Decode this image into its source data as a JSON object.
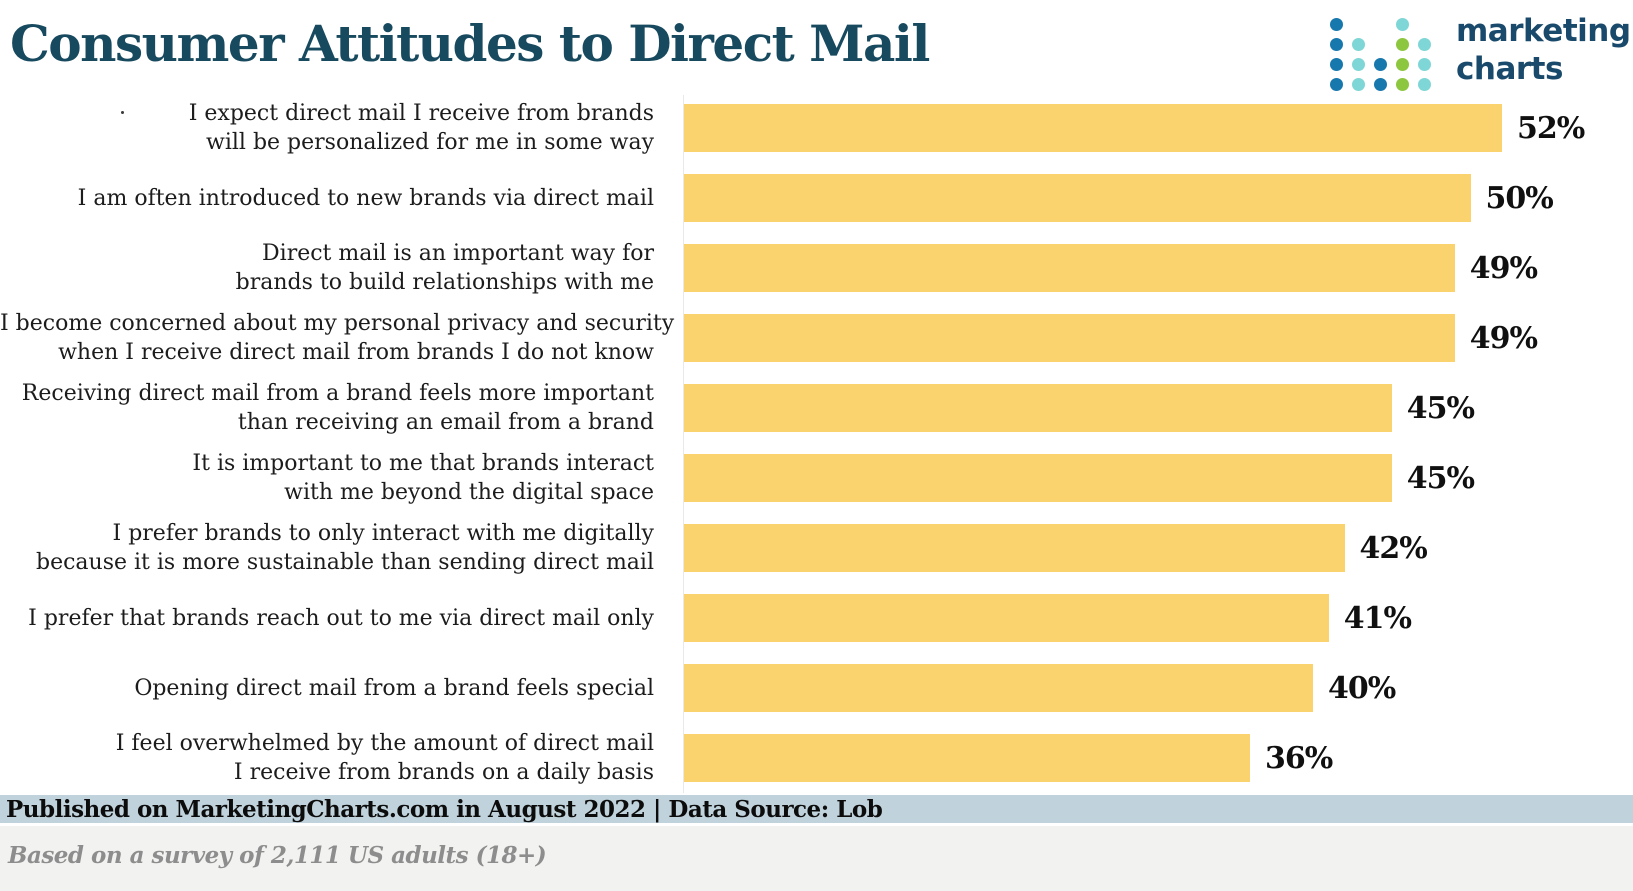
{
  "header": {
    "title": "Consumer Attitudes to Direct Mail",
    "title_color": "#17495f",
    "logo": {
      "line1": "marketing",
      "line2": "charts",
      "text_color": "#1a4a6b",
      "dot_palette": {
        "b": "#1778ae",
        "t": "#7fd6d6",
        "g": "#8dc63f"
      },
      "dot_grid": [
        [
          "b",
          "-",
          "-",
          "t",
          "-"
        ],
        [
          "b",
          "t",
          "-",
          "g",
          "t"
        ],
        [
          "b",
          "t",
          "b",
          "g",
          "t"
        ],
        [
          "b",
          "t",
          "b",
          "g",
          "t"
        ]
      ]
    }
  },
  "chart_data": {
    "type": "bar",
    "orientation": "horizontal",
    "title": "Consumer Attitudes to Direct Mail",
    "unit": "%",
    "bar_color": "#fbd36e",
    "xlim": [
      0,
      60
    ],
    "grid": false,
    "legend": false,
    "categories": [
      "I expect direct mail I receive from brands\nwill be personalized for me in some way",
      "I am often introduced to new brands via direct mail",
      "Direct mail is an important way for\nbrands to build relationships with me",
      "I become concerned about my personal privacy and security\nwhen I receive direct mail from brands I do not know",
      "Receiving direct mail from a brand feels more important\nthan receiving an email from a brand",
      "It is important to me that brands interact\nwith me beyond the digital space",
      "I prefer brands to only interact with me digitally\nbecause it is more sustainable than sending direct mail",
      "I prefer that brands reach out to me via direct mail only",
      "Opening direct mail from a brand feels special",
      "I feel overwhelmed by the amount of direct mail\nI receive from brands on a daily basis"
    ],
    "values": [
      52,
      50,
      49,
      49,
      45,
      45,
      42,
      41,
      40,
      36
    ],
    "value_labels": [
      "52%",
      "50%",
      "49%",
      "49%",
      "45%",
      "45%",
      "42%",
      "41%",
      "40%",
      "36%"
    ]
  },
  "footer": {
    "published": "Published on MarketingCharts.com in August 2022 | Data Source: Lob",
    "published_bg": "#c0d2db",
    "survey_note": "Based on a survey of 2,111 US adults (18+)",
    "note_bg": "#f2f2f1"
  }
}
